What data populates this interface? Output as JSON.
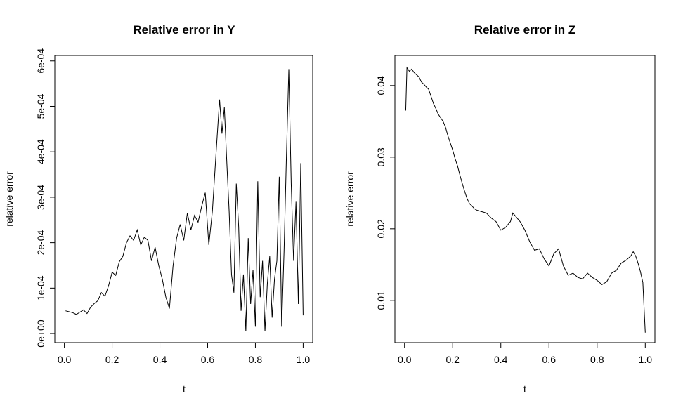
{
  "chart_data": [
    {
      "type": "line",
      "title": "Relative error in Y",
      "xlabel": "t",
      "ylabel": "relative error",
      "xlim": [
        -0.04,
        1.04
      ],
      "ylim": [
        -2e-05,
        0.000612
      ],
      "x_ticks": [
        {
          "value": 0.0,
          "label": "0.0"
        },
        {
          "value": 0.2,
          "label": "0.2"
        },
        {
          "value": 0.4,
          "label": "0.4"
        },
        {
          "value": 0.6,
          "label": "0.6"
        },
        {
          "value": 0.8,
          "label": "0.8"
        },
        {
          "value": 1.0,
          "label": "1.0"
        }
      ],
      "y_ticks": [
        {
          "value": 0.0,
          "label": "0e+00"
        },
        {
          "value": 0.0001,
          "label": "1e-04"
        },
        {
          "value": 0.0002,
          "label": "2e-04"
        },
        {
          "value": 0.0003,
          "label": "3e-04"
        },
        {
          "value": 0.0004,
          "label": "4e-04"
        },
        {
          "value": 0.0005,
          "label": "5e-04"
        },
        {
          "value": 0.0006,
          "label": "6e-04"
        }
      ],
      "grid": false,
      "series": [
        {
          "x": [
            0.005,
            0.02,
            0.035,
            0.05,
            0.065,
            0.08,
            0.095,
            0.11,
            0.125,
            0.14,
            0.155,
            0.17,
            0.185,
            0.2,
            0.215,
            0.23,
            0.245,
            0.26,
            0.275,
            0.29,
            0.305,
            0.32,
            0.335,
            0.35,
            0.365,
            0.38,
            0.395,
            0.41,
            0.425,
            0.44,
            0.455,
            0.47,
            0.485,
            0.5,
            0.515,
            0.53,
            0.545,
            0.56,
            0.575,
            0.59,
            0.605,
            0.62,
            0.635,
            0.65,
            0.66,
            0.67,
            0.68,
            0.69,
            0.7,
            0.71,
            0.72,
            0.73,
            0.74,
            0.75,
            0.76,
            0.77,
            0.78,
            0.79,
            0.8,
            0.81,
            0.82,
            0.83,
            0.84,
            0.85,
            0.86,
            0.87,
            0.88,
            0.89,
            0.9,
            0.91,
            0.92,
            0.93,
            0.94,
            0.95,
            0.96,
            0.97,
            0.98,
            0.99,
            1.0
          ],
          "y": [
            5e-05,
            4.8e-05,
            4.6e-05,
            4.2e-05,
            4.7e-05,
            5.2e-05,
            4.4e-05,
            5.8e-05,
            6.6e-05,
            7.2e-05,
            9e-05,
            8.2e-05,
            0.000105,
            0.000135,
            0.000128,
            0.000158,
            0.00017,
            0.0002,
            0.000215,
            0.000205,
            0.000228,
            0.000195,
            0.000212,
            0.000205,
            0.00016,
            0.00019,
            0.00015,
            0.00012,
            8e-05,
            5.5e-05,
            0.000148,
            0.00021,
            0.00024,
            0.000205,
            0.000265,
            0.000228,
            0.00026,
            0.000245,
            0.00028,
            0.00031,
            0.000195,
            0.00027,
            0.000395,
            0.000515,
            0.00044,
            0.000498,
            0.00038,
            0.00027,
            0.00013,
            9e-05,
            0.00033,
            0.000235,
            5e-05,
            0.00013,
            5e-06,
            0.00021,
            6.5e-05,
            0.00014,
            1.5e-05,
            0.000335,
            8e-05,
            0.00016,
            5e-06,
            0.00011,
            0.00017,
            3.5e-05,
            0.00012,
            0.00016,
            0.000345,
            1.5e-05,
            0.00018,
            0.00039,
            0.000582,
            0.00033,
            0.00016,
            0.00029,
            6.5e-05,
            0.000375,
            4e-05
          ]
        }
      ]
    },
    {
      "type": "line",
      "title": "Relative error in Z",
      "xlabel": "t",
      "ylabel": "relative error",
      "xlim": [
        -0.04,
        1.04
      ],
      "ylim": [
        0.0041,
        0.0442
      ],
      "x_ticks": [
        {
          "value": 0.0,
          "label": "0.0"
        },
        {
          "value": 0.2,
          "label": "0.2"
        },
        {
          "value": 0.4,
          "label": "0.4"
        },
        {
          "value": 0.6,
          "label": "0.6"
        },
        {
          "value": 0.8,
          "label": "0.8"
        },
        {
          "value": 1.0,
          "label": "1.0"
        }
      ],
      "y_ticks": [
        {
          "value": 0.01,
          "label": "0.01"
        },
        {
          "value": 0.02,
          "label": "0.02"
        },
        {
          "value": 0.03,
          "label": "0.03"
        },
        {
          "value": 0.04,
          "label": "0.04"
        }
      ],
      "grid": false,
      "series": [
        {
          "x": [
            0.005,
            0.01,
            0.02,
            0.03,
            0.04,
            0.05,
            0.06,
            0.07,
            0.08,
            0.09,
            0.1,
            0.11,
            0.12,
            0.13,
            0.14,
            0.15,
            0.16,
            0.17,
            0.18,
            0.19,
            0.2,
            0.21,
            0.22,
            0.23,
            0.24,
            0.25,
            0.26,
            0.27,
            0.28,
            0.29,
            0.3,
            0.32,
            0.34,
            0.36,
            0.38,
            0.4,
            0.42,
            0.44,
            0.45,
            0.46,
            0.48,
            0.5,
            0.52,
            0.54,
            0.56,
            0.58,
            0.6,
            0.62,
            0.64,
            0.66,
            0.68,
            0.7,
            0.72,
            0.74,
            0.76,
            0.78,
            0.8,
            0.82,
            0.84,
            0.86,
            0.88,
            0.9,
            0.92,
            0.94,
            0.95,
            0.96,
            0.97,
            0.98,
            0.99,
            1.0
          ],
          "y": [
            0.0365,
            0.0425,
            0.042,
            0.0423,
            0.0418,
            0.0415,
            0.0412,
            0.0405,
            0.0402,
            0.0398,
            0.0395,
            0.0385,
            0.0375,
            0.0368,
            0.036,
            0.0355,
            0.035,
            0.0342,
            0.033,
            0.032,
            0.031,
            0.0298,
            0.0288,
            0.0275,
            0.0263,
            0.0252,
            0.0242,
            0.0235,
            0.0232,
            0.0228,
            0.0226,
            0.0224,
            0.0222,
            0.0215,
            0.021,
            0.0198,
            0.0202,
            0.021,
            0.0222,
            0.0218,
            0.021,
            0.0198,
            0.0182,
            0.017,
            0.0172,
            0.0158,
            0.0148,
            0.0165,
            0.0172,
            0.0148,
            0.0135,
            0.0138,
            0.0132,
            0.013,
            0.0138,
            0.0132,
            0.0128,
            0.0122,
            0.0126,
            0.0138,
            0.0142,
            0.0152,
            0.0156,
            0.0162,
            0.0168,
            0.0162,
            0.0152,
            0.014,
            0.0125,
            0.0055
          ]
        }
      ]
    }
  ]
}
